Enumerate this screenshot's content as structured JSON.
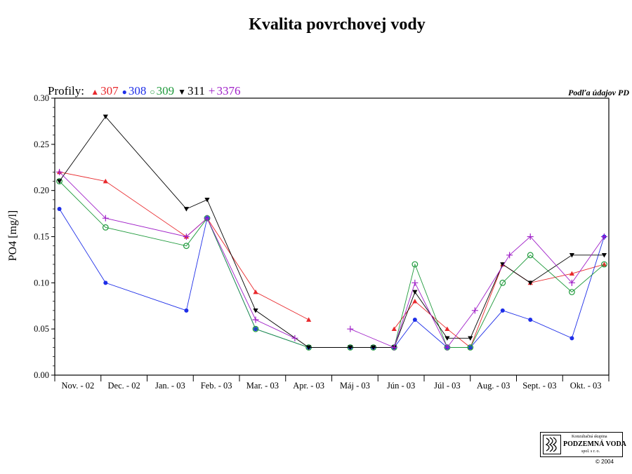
{
  "page": {
    "title": "Kvalita povrchovej vody"
  },
  "source_note": "Podľa údajov PD",
  "legend": {
    "prefix": "Profily:"
  },
  "footer": {
    "logo": {
      "line1": "Konzultačná skupina",
      "line2": "PODZEMNÁ VODA",
      "line3": "spol. s r. o."
    },
    "copyright": "© 2004"
  },
  "chart_data": {
    "type": "line",
    "title": "Kvalita povrchovej vody",
    "xlabel": "",
    "ylabel": "PO4 [mg/l]",
    "ylim": [
      0,
      0.3
    ],
    "yticks": [
      "0.00",
      "0.05",
      "0.10",
      "0.15",
      "0.20",
      "0.25",
      "0.30"
    ],
    "categories": [
      "Nov. - 02",
      "Dec. - 02",
      "Jan. - 03",
      "Feb. - 03",
      "Mar. - 03",
      "Apr. - 03",
      "Máj - 03",
      "Jún - 03",
      "Júl - 03",
      "Aug. - 03",
      "Sept. - 03",
      "Okt. - 03"
    ],
    "x_unit": "month index (0 = Nov. 2002)",
    "grid": "horizontal dashed",
    "legend_position": "top-left",
    "series": [
      {
        "name": "307",
        "color": "#e8282c",
        "marker": "triangle-up",
        "points": [
          [
            0.1,
            0.22
          ],
          [
            1.1,
            0.21
          ],
          [
            2.85,
            0.15
          ],
          [
            3.3,
            0.17
          ],
          [
            4.35,
            0.09
          ],
          [
            5.5,
            0.06
          ],
          [
            null,
            null
          ],
          [
            7.35,
            0.05
          ],
          [
            7.8,
            0.08
          ],
          [
            8.5,
            0.05
          ],
          [
            9.0,
            0.03
          ],
          [
            9.7,
            0.12
          ],
          [
            10.3,
            0.1
          ],
          [
            11.2,
            0.11
          ],
          [
            11.9,
            0.12
          ]
        ]
      },
      {
        "name": "308",
        "color": "#1e2ee8",
        "marker": "circle",
        "points": [
          [
            0.1,
            0.18
          ],
          [
            1.1,
            0.1
          ],
          [
            2.85,
            0.07
          ],
          [
            3.3,
            0.17
          ],
          [
            4.35,
            0.05
          ],
          [
            5.5,
            0.03
          ],
          [
            6.4,
            0.03
          ],
          [
            6.9,
            0.03
          ],
          [
            7.35,
            0.03
          ],
          [
            7.8,
            0.06
          ],
          [
            8.5,
            0.03
          ],
          [
            9.0,
            0.03
          ],
          [
            9.7,
            0.07
          ],
          [
            10.3,
            0.06
          ],
          [
            11.2,
            0.04
          ],
          [
            11.9,
            0.15
          ]
        ]
      },
      {
        "name": "309",
        "color": "#1f9a3c",
        "marker": "circle-open",
        "points": [
          [
            0.1,
            0.21
          ],
          [
            1.1,
            0.16
          ],
          [
            2.85,
            0.14
          ],
          [
            3.3,
            0.17
          ],
          [
            4.35,
            0.05
          ],
          [
            5.5,
            0.03
          ],
          [
            6.4,
            0.03
          ],
          [
            6.9,
            0.03
          ],
          [
            7.35,
            0.03
          ],
          [
            7.8,
            0.12
          ],
          [
            8.5,
            0.03
          ],
          [
            9.0,
            0.03
          ],
          [
            9.7,
            0.1
          ],
          [
            10.3,
            0.13
          ],
          [
            11.2,
            0.09
          ],
          [
            11.9,
            0.12
          ]
        ]
      },
      {
        "name": "311",
        "color": "#000000",
        "marker": "triangle-down",
        "points": [
          [
            0.1,
            0.21
          ],
          [
            1.1,
            0.28
          ],
          [
            2.85,
            0.18
          ],
          [
            3.3,
            0.19
          ],
          [
            4.35,
            0.07
          ],
          [
            5.5,
            0.03
          ],
          [
            6.4,
            0.03
          ],
          [
            6.9,
            0.03
          ],
          [
            7.35,
            0.03
          ],
          [
            7.8,
            0.09
          ],
          [
            8.5,
            0.04
          ],
          [
            9.0,
            0.04
          ],
          [
            9.7,
            0.12
          ],
          [
            10.3,
            0.1
          ],
          [
            11.2,
            0.13
          ],
          [
            11.9,
            0.13
          ]
        ]
      },
      {
        "name": "3376",
        "color": "#a020c8",
        "marker": "plus",
        "points": [
          [
            0.1,
            0.22
          ],
          [
            1.1,
            0.17
          ],
          [
            2.85,
            0.15
          ],
          [
            3.3,
            0.17
          ],
          [
            4.35,
            0.06
          ],
          [
            5.2,
            0.04
          ],
          [
            null,
            null
          ],
          [
            6.4,
            0.05
          ],
          [
            7.35,
            0.03
          ],
          [
            7.8,
            0.1
          ],
          [
            8.5,
            0.03
          ],
          [
            9.1,
            0.07
          ],
          [
            9.85,
            0.13
          ],
          [
            10.3,
            0.15
          ],
          [
            11.2,
            0.1
          ],
          [
            11.9,
            0.15
          ]
        ]
      }
    ]
  }
}
